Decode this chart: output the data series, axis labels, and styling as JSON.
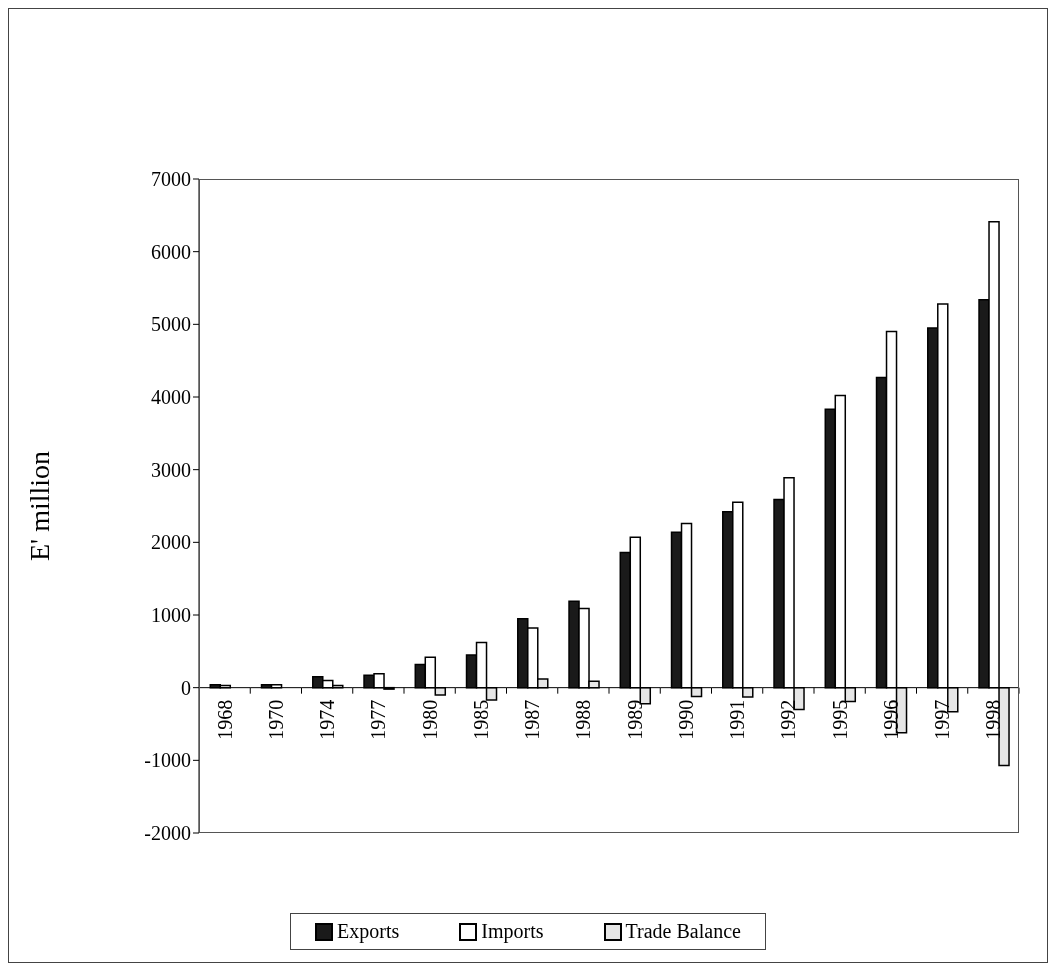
{
  "chart_data": {
    "type": "bar",
    "ylabel": "E' million",
    "categories": [
      "1968",
      "1970",
      "1974",
      "1977",
      "1980",
      "1985",
      "1987",
      "1988",
      "1989",
      "1990",
      "1991",
      "1992",
      "1995",
      "1996",
      "1997",
      "1998"
    ],
    "series": [
      {
        "name": "Exports",
        "color": "#1a1a1a",
        "values": [
          40,
          40,
          150,
          170,
          320,
          450,
          950,
          1190,
          1860,
          2140,
          2420,
          2590,
          3830,
          4270,
          4950,
          5340
        ]
      },
      {
        "name": "Imports",
        "color": "#ffffff",
        "values": [
          30,
          40,
          100,
          190,
          420,
          620,
          820,
          1090,
          2070,
          2260,
          2550,
          2890,
          4020,
          4900,
          5280,
          6410
        ]
      },
      {
        "name": "Trade Balance",
        "color": "#e6e6e6",
        "values": [
          0,
          0,
          30,
          -20,
          -100,
          -170,
          120,
          90,
          -220,
          -120,
          -130,
          -300,
          -190,
          -620,
          -330,
          -1070
        ]
      }
    ],
    "ylim": [
      -2000,
      7000
    ],
    "yticks": [
      -2000,
      -1000,
      0,
      1000,
      2000,
      3000,
      4000,
      5000,
      6000,
      7000
    ],
    "grid": false,
    "legend": "bottom"
  }
}
